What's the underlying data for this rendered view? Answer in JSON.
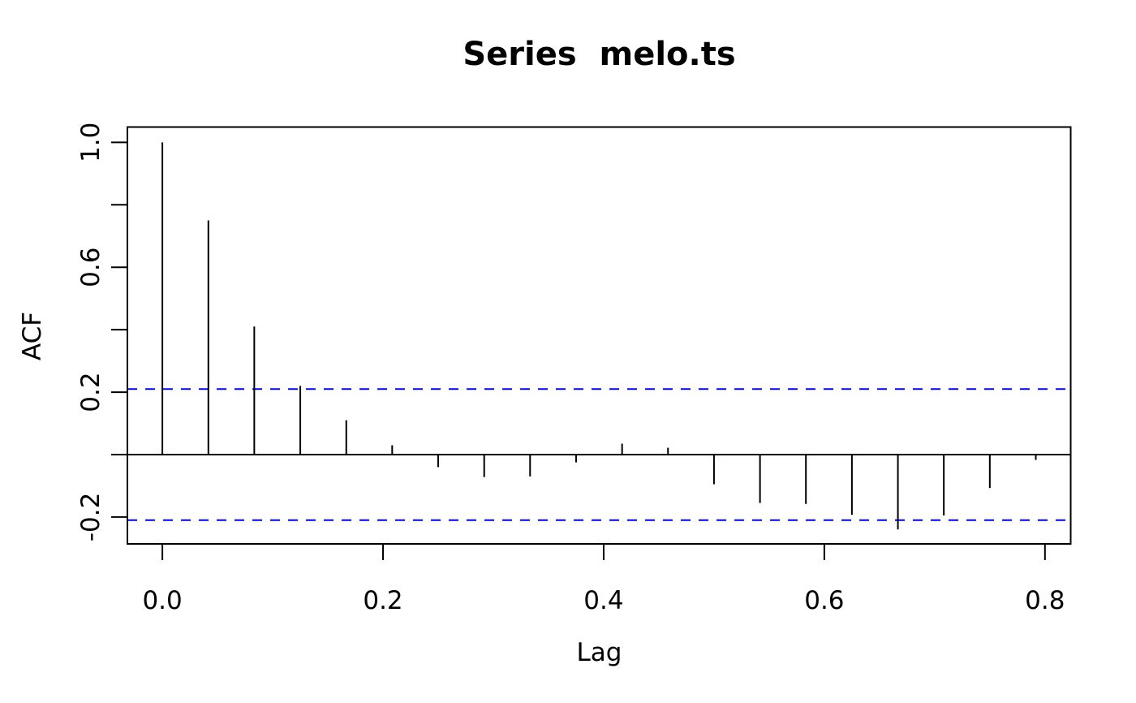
{
  "chart_data": {
    "type": "bar",
    "subtype": "acf-stem-plot",
    "title": "Series  melo.ts",
    "xlabel": "Lag",
    "ylabel": "ACF",
    "x": [
      0.0,
      0.0417,
      0.0833,
      0.125,
      0.1667,
      0.2083,
      0.25,
      0.2917,
      0.3333,
      0.375,
      0.4167,
      0.4583,
      0.5,
      0.5417,
      0.5833,
      0.625,
      0.6667,
      0.7083,
      0.75,
      0.7917
    ],
    "values": [
      1.0,
      0.75,
      0.41,
      0.22,
      0.11,
      0.03,
      -0.04,
      -0.072,
      -0.07,
      -0.025,
      0.035,
      0.022,
      -0.095,
      -0.155,
      -0.158,
      -0.193,
      -0.24,
      -0.195,
      -0.107,
      -0.017
    ],
    "conf_interval": 0.21,
    "zero_line": 0,
    "xlim": [
      -0.0317,
      0.8233
    ],
    "ylim": [
      -0.286,
      1.049
    ],
    "xticks": {
      "values": [
        0.0,
        0.2,
        0.4,
        0.6,
        0.8
      ],
      "labels": [
        "0.0",
        "0.2",
        "0.4",
        "0.6",
        "0.8"
      ]
    },
    "yticks": {
      "values": [
        1.0,
        0.8,
        0.6,
        0.4,
        0.2,
        0.0,
        -0.2
      ],
      "labels": [
        "1.0",
        "",
        "0.6",
        "",
        "0.2",
        "",
        "-0.2"
      ]
    },
    "grid": false,
    "legend": null,
    "colors": {
      "stem": "#000000",
      "confidence_line": "#0000ff",
      "axis": "#000000",
      "background": "#ffffff"
    }
  }
}
